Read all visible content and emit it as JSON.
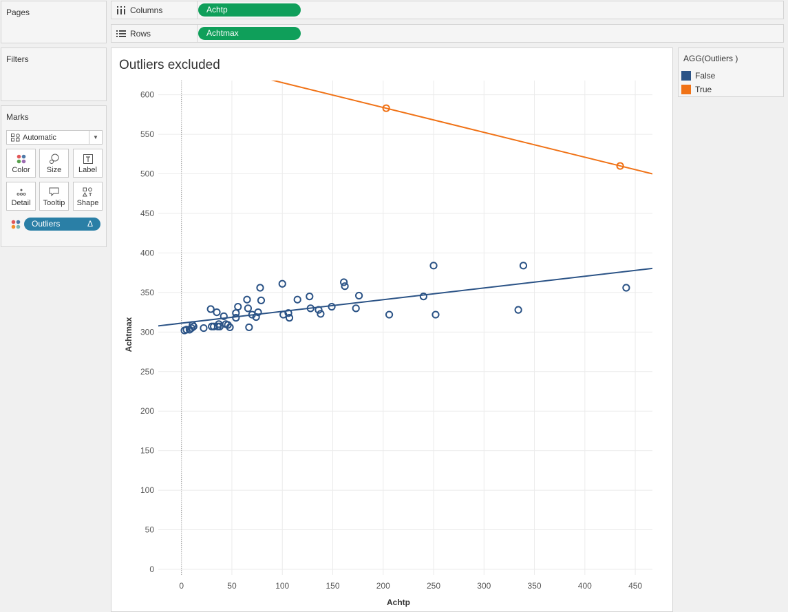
{
  "shelves": {
    "columns": {
      "label": "Columns",
      "pill": "Achtp"
    },
    "rows": {
      "label": "Rows",
      "pill": "Achtmax"
    }
  },
  "cards": {
    "pages": "Pages",
    "filters": "Filters",
    "marks": "Marks"
  },
  "marks": {
    "type": "Automatic",
    "buttons": {
      "color": "Color",
      "size": "Size",
      "label": "Label",
      "detail": "Detail",
      "tooltip": "Tooltip",
      "shape": "Shape"
    },
    "field_pill": "Outliers",
    "field_pill_symbol": "Δ"
  },
  "view": {
    "title": "Outliers excluded"
  },
  "legend": {
    "title": "AGG(Outliers )",
    "items": [
      {
        "label": "False",
        "color": "#2b5386"
      },
      {
        "label": "True",
        "color": "#f07216"
      }
    ]
  },
  "chart_data": {
    "type": "scatter",
    "xlabel": "Achtp",
    "ylabel": "Achtmax",
    "xlim": [
      -23,
      467
    ],
    "ylim": [
      -7,
      618
    ],
    "xticks": [
      0,
      50,
      100,
      150,
      200,
      250,
      300,
      350,
      400,
      450
    ],
    "yticks": [
      0,
      50,
      100,
      150,
      200,
      250,
      300,
      350,
      400,
      450,
      500,
      550,
      600
    ],
    "grid": true,
    "colors": {
      "False": "#2b5386",
      "True": "#f07216",
      "grid": "#ebebeb"
    },
    "series": [
      {
        "name": "False",
        "points": [
          [
            3,
            302
          ],
          [
            5,
            303
          ],
          [
            8,
            303
          ],
          [
            10,
            305
          ],
          [
            11,
            309
          ],
          [
            12,
            307
          ],
          [
            22,
            305
          ],
          [
            29,
            329
          ],
          [
            30,
            307
          ],
          [
            32,
            307
          ],
          [
            35,
            325
          ],
          [
            36,
            307
          ],
          [
            37,
            310
          ],
          [
            38,
            307
          ],
          [
            42,
            320
          ],
          [
            44,
            310
          ],
          [
            46,
            309
          ],
          [
            48,
            306
          ],
          [
            54,
            318
          ],
          [
            54,
            324
          ],
          [
            56,
            332
          ],
          [
            65,
            341
          ],
          [
            66,
            330
          ],
          [
            67,
            306
          ],
          [
            70,
            322
          ],
          [
            74,
            319
          ],
          [
            76,
            325
          ],
          [
            78,
            356
          ],
          [
            79,
            340
          ],
          [
            100,
            361
          ],
          [
            101,
            322
          ],
          [
            106,
            324
          ],
          [
            107,
            318
          ],
          [
            115,
            341
          ],
          [
            127,
            345
          ],
          [
            128,
            330
          ],
          [
            136,
            328
          ],
          [
            138,
            323
          ],
          [
            149,
            332
          ],
          [
            161,
            363
          ],
          [
            162,
            358
          ],
          [
            173,
            330
          ],
          [
            176,
            346
          ],
          [
            206,
            322
          ],
          [
            240,
            345
          ],
          [
            250,
            384
          ],
          [
            252,
            322
          ],
          [
            334,
            328
          ],
          [
            339,
            384
          ],
          [
            441,
            356
          ]
        ],
        "trend": [
          [
            -23,
            307.8
          ],
          [
            467,
            380.5
          ]
        ]
      },
      {
        "name": "True",
        "points": [
          [
            203,
            583
          ],
          [
            435,
            510
          ]
        ],
        "trend": [
          [
            -23,
            654
          ],
          [
            467,
            500
          ]
        ]
      }
    ]
  }
}
